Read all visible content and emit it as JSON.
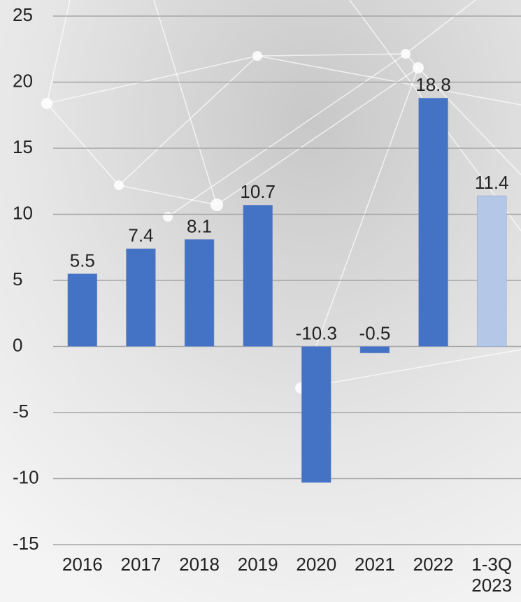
{
  "chart_data": {
    "type": "bar",
    "categories": [
      "2016",
      "2017",
      "2018",
      "2019",
      "2020",
      "2021",
      "2022",
      "1-3Q 2023"
    ],
    "values": [
      5.5,
      7.4,
      8.1,
      10.7,
      -10.3,
      -0.5,
      18.8,
      11.4
    ],
    "colors": [
      "#4472c4",
      "#4472c4",
      "#4472c4",
      "#4472c4",
      "#4472c4",
      "#4472c4",
      "#4472c4",
      "#b4c7e7"
    ],
    "ylim": [
      -15,
      25
    ],
    "yticks": [
      -15,
      -10,
      -5,
      0,
      5,
      10,
      15,
      20,
      25
    ],
    "grid": true
  }
}
